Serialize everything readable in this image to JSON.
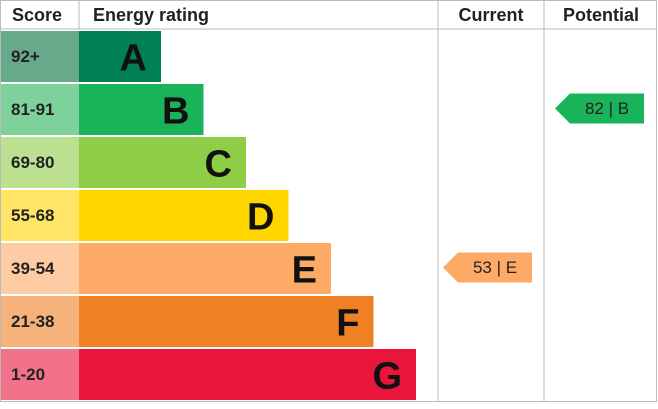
{
  "header": {
    "score": "Score",
    "rating": "Energy rating",
    "current": "Current",
    "potential": "Potential"
  },
  "bands": [
    {
      "score": "92+",
      "letter": "A",
      "color": "#008054",
      "score_color": "#66a98b"
    },
    {
      "score": "81-91",
      "letter": "B",
      "color": "#19b459",
      "score_color": "#7fd19c"
    },
    {
      "score": "69-80",
      "letter": "C",
      "color": "#8dce46",
      "score_color": "#bbe190"
    },
    {
      "score": "55-68",
      "letter": "D",
      "color": "#ffd500",
      "score_color": "#ffe566"
    },
    {
      "score": "39-54",
      "letter": "E",
      "color": "#fcaa65",
      "score_color": "#fdcca3"
    },
    {
      "score": "21-38",
      "letter": "F",
      "color": "#ef8023",
      "score_color": "#f5b37b"
    },
    {
      "score": "1-20",
      "letter": "G",
      "color": "#e9153b",
      "score_color": "#f27389"
    }
  ],
  "current": {
    "label": "53 | E",
    "color": "#fcaa65"
  },
  "potential": {
    "label": "82 | B",
    "color": "#19b459"
  }
}
